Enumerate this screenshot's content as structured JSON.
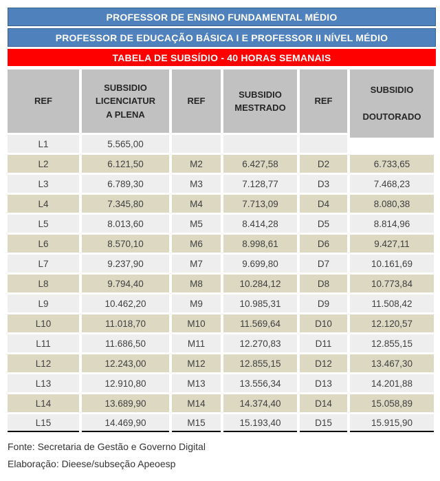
{
  "banners": [
    {
      "text": "PROFESSOR DE ENSINO FUNDAMENTAL MÉDIO"
    },
    {
      "text": "PROFESSOR DE EDUCAÇÃO BÁSICA I E PROFESSOR II NÍVEL MÉDIO"
    },
    {
      "text": "TABELA DE SUBSÍDIO - 40 HORAS SEMANAIS"
    }
  ],
  "table": {
    "headers": [
      "REF",
      "SUBSIDIO\nLICENCIATUR\nA PLENA",
      "REF",
      "SUBSIDIO\nMESTRADO",
      "REF",
      "SUBSIDIO\n\nDOUTORADO"
    ],
    "rows": [
      [
        "L1",
        "5.565,00",
        "",
        "",
        "",
        ""
      ],
      [
        "L2",
        "6.121,50",
        "M2",
        "6.427,58",
        "D2",
        "6.733,65"
      ],
      [
        "L3",
        "6.789,30",
        "M3",
        "7.128,77",
        "D3",
        "7.468,23"
      ],
      [
        "L4",
        "7.345,80",
        "M4",
        "7.713,09",
        "D4",
        "8.080,38"
      ],
      [
        "L5",
        "8.013,60",
        "M5",
        "8.414,28",
        "D5",
        "8.814,96"
      ],
      [
        "L6",
        "8.570,10",
        "M6",
        "8.998,61",
        "D6",
        "9.427,11"
      ],
      [
        "L7",
        "9.237,90",
        "M7",
        "9.699,80",
        "D7",
        "10.161,69"
      ],
      [
        "L8",
        "9.794,40",
        "M8",
        "10.284,12",
        "D8",
        "10.773,84"
      ],
      [
        "L9",
        "10.462,20",
        "M9",
        "10.985,31",
        "D9",
        "11.508,42"
      ],
      [
        "L10",
        "11.018,70",
        "M10",
        "11.569,64",
        "D10",
        "12.120,57"
      ],
      [
        "L11",
        "11.686,50",
        "M11",
        "12.270,83",
        "D11",
        "12.855,15"
      ],
      [
        "L12",
        "12.243,00",
        "M12",
        "12.855,15",
        "D12",
        "13.467,30"
      ],
      [
        "L13",
        "12.910,80",
        "M13",
        "13.556,34",
        "D13",
        "14.201,88"
      ],
      [
        "L14",
        "13.689,90",
        "M14",
        "14.374,40",
        "D14",
        "15.058,89"
      ],
      [
        "L15",
        "14.469,90",
        "M15",
        "15.193,40",
        "D15",
        "15.915,90"
      ]
    ]
  },
  "footer": {
    "fonte": "Fonte: Secretaria de Gestão e Governo Digital",
    "elaboracao": "Elaboração: Dieese/subseção Apeoesp"
  },
  "colors": {
    "banner_blue": "#4f81bd",
    "banner_blue_border": "#36608f",
    "banner_red": "#ff0000",
    "header_gray": "#c1c1c1",
    "row_light": "#eeeeee",
    "row_beige": "#dcd8c2",
    "table_bottom_line": "#000000",
    "banner_text": "#ffffff",
    "data_text": "#3f3f3f"
  }
}
